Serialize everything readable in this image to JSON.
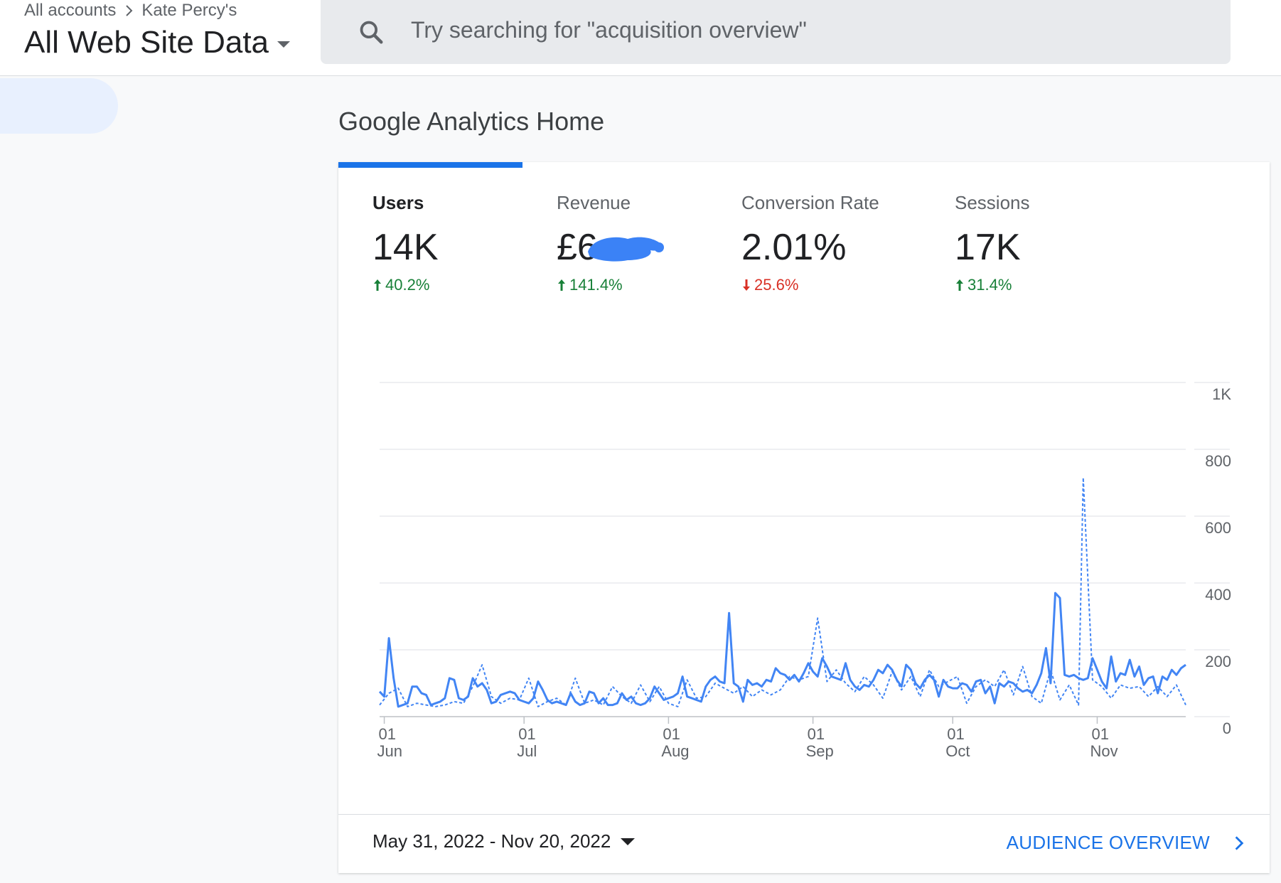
{
  "header": {
    "breadcrumb": [
      "All accounts",
      "Kate Percy's"
    ],
    "property_name": "All Web Site Data",
    "search_placeholder": "Try searching for \"acquisition overview\""
  },
  "page": {
    "title": "Google Analytics Home"
  },
  "metrics": [
    {
      "label": "Users",
      "value": "14K",
      "change": "40.2%",
      "direction": "up"
    },
    {
      "label": "Revenue",
      "value": "£6",
      "change": "141.4%",
      "direction": "up",
      "redacted": true
    },
    {
      "label": "Conversion Rate",
      "value": "2.01%",
      "change": "25.6%",
      "direction": "down"
    },
    {
      "label": "Sessions",
      "value": "17K",
      "change": "31.4%",
      "direction": "up"
    }
  ],
  "colors": {
    "accent": "#1a73e8",
    "series": "#4285f4",
    "up": "#188038",
    "down": "#d93025"
  },
  "chart_data": {
    "type": "line",
    "x_range": [
      "2022-05-31",
      "2022-11-20"
    ],
    "y_ticks": [
      "0",
      "200",
      "400",
      "600",
      "800",
      "1K"
    ],
    "ylim": [
      0,
      1000
    ],
    "x_ticks": [
      {
        "day": "01",
        "month": "Jun",
        "date": "2022-06-01"
      },
      {
        "day": "01",
        "month": "Jul",
        "date": "2022-07-01"
      },
      {
        "day": "01",
        "month": "Aug",
        "date": "2022-08-01"
      },
      {
        "day": "01",
        "month": "Sep",
        "date": "2022-09-01"
      },
      {
        "day": "01",
        "month": "Oct",
        "date": "2022-10-01"
      },
      {
        "day": "01",
        "month": "Nov",
        "date": "2022-11-01"
      }
    ],
    "series": [
      {
        "style": "solid",
        "points": [
          [
            "2022-05-31",
            75
          ],
          [
            "2022-06-01",
            60
          ],
          [
            "2022-06-02",
            235
          ],
          [
            "2022-06-03",
            115
          ],
          [
            "2022-06-04",
            30
          ],
          [
            "2022-06-05",
            35
          ],
          [
            "2022-06-06",
            40
          ],
          [
            "2022-06-07",
            90
          ],
          [
            "2022-06-08",
            90
          ],
          [
            "2022-06-09",
            70
          ],
          [
            "2022-06-10",
            65
          ],
          [
            "2022-06-11",
            35
          ],
          [
            "2022-06-12",
            40
          ],
          [
            "2022-06-13",
            45
          ],
          [
            "2022-06-14",
            55
          ],
          [
            "2022-06-15",
            115
          ],
          [
            "2022-06-16",
            110
          ],
          [
            "2022-06-17",
            55
          ],
          [
            "2022-06-18",
            50
          ],
          [
            "2022-06-19",
            60
          ],
          [
            "2022-06-20",
            115
          ],
          [
            "2022-06-21",
            90
          ],
          [
            "2022-06-22",
            100
          ],
          [
            "2022-06-23",
            80
          ],
          [
            "2022-06-24",
            40
          ],
          [
            "2022-06-25",
            45
          ],
          [
            "2022-06-26",
            65
          ],
          [
            "2022-06-27",
            70
          ],
          [
            "2022-06-28",
            75
          ],
          [
            "2022-06-29",
            70
          ],
          [
            "2022-06-30",
            50
          ],
          [
            "2022-07-01",
            45
          ],
          [
            "2022-07-02",
            40
          ],
          [
            "2022-07-03",
            55
          ],
          [
            "2022-07-04",
            105
          ],
          [
            "2022-07-05",
            80
          ],
          [
            "2022-07-06",
            50
          ],
          [
            "2022-07-07",
            40
          ],
          [
            "2022-07-08",
            45
          ],
          [
            "2022-07-09",
            40
          ],
          [
            "2022-07-10",
            35
          ],
          [
            "2022-07-11",
            70
          ],
          [
            "2022-07-12",
            45
          ],
          [
            "2022-07-13",
            35
          ],
          [
            "2022-07-14",
            40
          ],
          [
            "2022-07-15",
            75
          ],
          [
            "2022-07-16",
            70
          ],
          [
            "2022-07-17",
            40
          ],
          [
            "2022-07-18",
            55
          ],
          [
            "2022-07-19",
            35
          ],
          [
            "2022-07-20",
            35
          ],
          [
            "2022-07-21",
            40
          ],
          [
            "2022-07-22",
            70
          ],
          [
            "2022-07-23",
            50
          ],
          [
            "2022-07-24",
            60
          ],
          [
            "2022-07-25",
            40
          ],
          [
            "2022-07-26",
            35
          ],
          [
            "2022-07-27",
            40
          ],
          [
            "2022-07-28",
            55
          ],
          [
            "2022-07-29",
            90
          ],
          [
            "2022-07-30",
            70
          ],
          [
            "2022-07-31",
            50
          ],
          [
            "2022-08-01",
            55
          ],
          [
            "2022-08-02",
            60
          ],
          [
            "2022-08-03",
            70
          ],
          [
            "2022-08-04",
            120
          ],
          [
            "2022-08-05",
            60
          ],
          [
            "2022-08-06",
            55
          ],
          [
            "2022-08-07",
            50
          ],
          [
            "2022-08-08",
            45
          ],
          [
            "2022-08-09",
            90
          ],
          [
            "2022-08-10",
            110
          ],
          [
            "2022-08-11",
            120
          ],
          [
            "2022-08-12",
            105
          ],
          [
            "2022-08-13",
            100
          ],
          [
            "2022-08-14",
            310
          ],
          [
            "2022-08-15",
            100
          ],
          [
            "2022-08-16",
            90
          ],
          [
            "2022-08-17",
            45
          ],
          [
            "2022-08-18",
            110
          ],
          [
            "2022-08-19",
            95
          ],
          [
            "2022-08-20",
            100
          ],
          [
            "2022-08-21",
            90
          ],
          [
            "2022-08-22",
            110
          ],
          [
            "2022-08-23",
            105
          ],
          [
            "2022-08-24",
            145
          ],
          [
            "2022-08-25",
            130
          ],
          [
            "2022-08-26",
            125
          ],
          [
            "2022-08-27",
            110
          ],
          [
            "2022-08-28",
            125
          ],
          [
            "2022-08-29",
            105
          ],
          [
            "2022-08-30",
            130
          ],
          [
            "2022-08-31",
            160
          ],
          [
            "2022-09-01",
            135
          ],
          [
            "2022-09-02",
            120
          ],
          [
            "2022-09-03",
            175
          ],
          [
            "2022-09-04",
            150
          ],
          [
            "2022-09-05",
            120
          ],
          [
            "2022-09-06",
            115
          ],
          [
            "2022-09-07",
            110
          ],
          [
            "2022-09-08",
            160
          ],
          [
            "2022-09-09",
            110
          ],
          [
            "2022-09-10",
            90
          ],
          [
            "2022-09-11",
            80
          ],
          [
            "2022-09-12",
            95
          ],
          [
            "2022-09-13",
            90
          ],
          [
            "2022-09-14",
            110
          ],
          [
            "2022-09-15",
            140
          ],
          [
            "2022-09-16",
            130
          ],
          [
            "2022-09-17",
            155
          ],
          [
            "2022-09-18",
            140
          ],
          [
            "2022-09-19",
            110
          ],
          [
            "2022-09-20",
            90
          ],
          [
            "2022-09-21",
            155
          ],
          [
            "2022-09-22",
            140
          ],
          [
            "2022-09-23",
            100
          ],
          [
            "2022-09-24",
            85
          ],
          [
            "2022-09-25",
            110
          ],
          [
            "2022-09-26",
            125
          ],
          [
            "2022-09-27",
            110
          ],
          [
            "2022-09-28",
            60
          ],
          [
            "2022-09-29",
            110
          ],
          [
            "2022-09-30",
            90
          ],
          [
            "2022-10-01",
            85
          ],
          [
            "2022-10-02",
            85
          ],
          [
            "2022-10-03",
            100
          ],
          [
            "2022-10-04",
            95
          ],
          [
            "2022-10-05",
            75
          ],
          [
            "2022-10-06",
            105
          ],
          [
            "2022-10-07",
            110
          ],
          [
            "2022-10-08",
            70
          ],
          [
            "2022-10-09",
            90
          ],
          [
            "2022-10-10",
            40
          ],
          [
            "2022-10-11",
            100
          ],
          [
            "2022-10-12",
            90
          ],
          [
            "2022-10-13",
            105
          ],
          [
            "2022-10-14",
            100
          ],
          [
            "2022-10-15",
            85
          ],
          [
            "2022-10-16",
            75
          ],
          [
            "2022-10-17",
            80
          ],
          [
            "2022-10-18",
            70
          ],
          [
            "2022-10-19",
            95
          ],
          [
            "2022-10-20",
            130
          ],
          [
            "2022-10-21",
            205
          ],
          [
            "2022-10-22",
            100
          ],
          [
            "2022-10-23",
            370
          ],
          [
            "2022-10-24",
            355
          ],
          [
            "2022-10-25",
            125
          ],
          [
            "2022-10-26",
            120
          ],
          [
            "2022-10-27",
            125
          ],
          [
            "2022-10-28",
            115
          ],
          [
            "2022-10-29",
            110
          ],
          [
            "2022-10-30",
            115
          ],
          [
            "2022-10-31",
            175
          ],
          [
            "2022-11-01",
            140
          ],
          [
            "2022-11-02",
            105
          ],
          [
            "2022-11-03",
            85
          ],
          [
            "2022-11-04",
            180
          ],
          [
            "2022-11-05",
            105
          ],
          [
            "2022-11-06",
            130
          ],
          [
            "2022-11-07",
            125
          ],
          [
            "2022-11-08",
            170
          ],
          [
            "2022-11-09",
            120
          ],
          [
            "2022-11-10",
            150
          ],
          [
            "2022-11-11",
            95
          ],
          [
            "2022-11-12",
            115
          ],
          [
            "2022-11-13",
            120
          ],
          [
            "2022-11-14",
            70
          ],
          [
            "2022-11-15",
            120
          ],
          [
            "2022-11-16",
            110
          ],
          [
            "2022-11-17",
            140
          ],
          [
            "2022-11-18",
            125
          ],
          [
            "2022-11-19",
            145
          ],
          [
            "2022-11-20",
            155
          ]
        ]
      },
      {
        "style": "dashed",
        "points": [
          [
            "2022-05-31",
            35
          ],
          [
            "2022-06-02",
            70
          ],
          [
            "2022-06-04",
            85
          ],
          [
            "2022-06-06",
            30
          ],
          [
            "2022-06-08",
            40
          ],
          [
            "2022-06-10",
            35
          ],
          [
            "2022-06-12",
            30
          ],
          [
            "2022-06-14",
            35
          ],
          [
            "2022-06-16",
            45
          ],
          [
            "2022-06-18",
            40
          ],
          [
            "2022-06-20",
            90
          ],
          [
            "2022-06-22",
            155
          ],
          [
            "2022-06-24",
            60
          ],
          [
            "2022-06-26",
            40
          ],
          [
            "2022-06-28",
            55
          ],
          [
            "2022-06-30",
            50
          ],
          [
            "2022-07-02",
            115
          ],
          [
            "2022-07-04",
            30
          ],
          [
            "2022-07-06",
            45
          ],
          [
            "2022-07-08",
            55
          ],
          [
            "2022-07-10",
            35
          ],
          [
            "2022-07-12",
            115
          ],
          [
            "2022-07-14",
            40
          ],
          [
            "2022-07-16",
            50
          ],
          [
            "2022-07-18",
            35
          ],
          [
            "2022-07-20",
            90
          ],
          [
            "2022-07-22",
            60
          ],
          [
            "2022-07-24",
            40
          ],
          [
            "2022-07-26",
            95
          ],
          [
            "2022-07-28",
            45
          ],
          [
            "2022-07-30",
            90
          ],
          [
            "2022-08-01",
            40
          ],
          [
            "2022-08-03",
            30
          ],
          [
            "2022-08-05",
            110
          ],
          [
            "2022-08-07",
            55
          ],
          [
            "2022-08-09",
            60
          ],
          [
            "2022-08-11",
            100
          ],
          [
            "2022-08-13",
            85
          ],
          [
            "2022-08-15",
            70
          ],
          [
            "2022-08-17",
            90
          ],
          [
            "2022-08-19",
            60
          ],
          [
            "2022-08-21",
            80
          ],
          [
            "2022-08-23",
            65
          ],
          [
            "2022-08-25",
            80
          ],
          [
            "2022-08-27",
            120
          ],
          [
            "2022-08-29",
            110
          ],
          [
            "2022-08-31",
            120
          ],
          [
            "2022-09-02",
            295
          ],
          [
            "2022-09-04",
            105
          ],
          [
            "2022-09-06",
            140
          ],
          [
            "2022-09-08",
            100
          ],
          [
            "2022-09-10",
            75
          ],
          [
            "2022-09-12",
            120
          ],
          [
            "2022-09-14",
            95
          ],
          [
            "2022-09-16",
            55
          ],
          [
            "2022-09-18",
            135
          ],
          [
            "2022-09-20",
            80
          ],
          [
            "2022-09-22",
            120
          ],
          [
            "2022-09-24",
            60
          ],
          [
            "2022-09-26",
            140
          ],
          [
            "2022-09-28",
            90
          ],
          [
            "2022-09-30",
            105
          ],
          [
            "2022-10-02",
            120
          ],
          [
            "2022-10-04",
            40
          ],
          [
            "2022-10-06",
            90
          ],
          [
            "2022-10-08",
            110
          ],
          [
            "2022-10-10",
            90
          ],
          [
            "2022-10-12",
            140
          ],
          [
            "2022-10-14",
            65
          ],
          [
            "2022-10-16",
            150
          ],
          [
            "2022-10-18",
            60
          ],
          [
            "2022-10-20",
            40
          ],
          [
            "2022-10-22",
            140
          ],
          [
            "2022-10-24",
            50
          ],
          [
            "2022-10-26",
            95
          ],
          [
            "2022-10-28",
            35
          ],
          [
            "2022-10-29",
            715
          ],
          [
            "2022-10-31",
            110
          ],
          [
            "2022-11-02",
            90
          ],
          [
            "2022-11-04",
            55
          ],
          [
            "2022-11-06",
            95
          ],
          [
            "2022-11-08",
            85
          ],
          [
            "2022-11-10",
            90
          ],
          [
            "2022-11-12",
            60
          ],
          [
            "2022-11-14",
            90
          ],
          [
            "2022-11-16",
            60
          ],
          [
            "2022-11-18",
            95
          ],
          [
            "2022-11-20",
            35
          ]
        ]
      }
    ]
  },
  "footer": {
    "date_range": "May 31, 2022 - Nov 20, 2022",
    "link_label": "AUDIENCE OVERVIEW"
  }
}
